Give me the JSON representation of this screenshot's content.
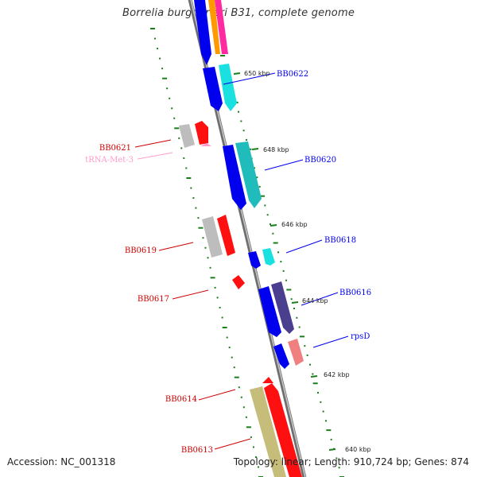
{
  "title": "Borrelia burgdorferi B31, complete genome",
  "footer": {
    "accession": "Accession: NC_001318",
    "summary": "Topology: linear; Length: 910,724 bp; Genes: 874"
  },
  "colors": {
    "backbone": "#8a8a8a",
    "ticks": "#1a7f1a",
    "blue": "#0000ee",
    "cyan": "#1ae0e0",
    "teal": "#20bcbc",
    "gray": "#bdbdbd",
    "red": "#ff1010",
    "navy": "#4a3f8f",
    "pink": "#f08080",
    "khaki": "#c7bd7a",
    "orange": "#ff9900",
    "magenta": "#ff2aa0",
    "trna": "#ff9ccc"
  },
  "kbp_labels": [
    "650 kbp",
    "648 kbp",
    "646 kbp",
    "644 kbp",
    "642 kbp",
    "640 kbp"
  ],
  "gene_labels_left": [
    "BB0621",
    "tRNA-Met-3",
    "BB0619",
    "BB0617",
    "BB0614",
    "BB0613"
  ],
  "gene_labels_right": [
    "BB0622",
    "BB0620",
    "BB0618",
    "BB0616",
    "rpsD"
  ]
}
